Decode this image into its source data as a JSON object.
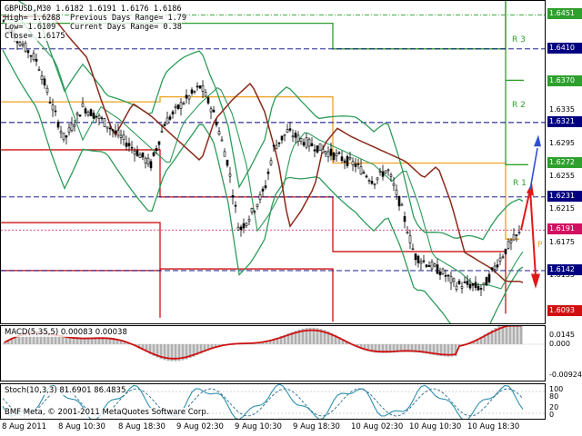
{
  "chart": {
    "symbol_line": "GBPUSD,M30  1.6182 1.6191 1.6176 1.6186",
    "high_line": "High= 1.6288",
    "low_line": "Low= 1.6109",
    "close_line": "Close= 1.6175",
    "prev_range_line": "Previous Days Range= 1.79",
    "curr_range_line": "Current Days Range= 0.38",
    "r3_label": "R 3",
    "r2_label": "R 2",
    "r1_label": "R 1",
    "p_label": "P",
    "copyright": "BMF Meta, © 2001-2011 MetaQuotes Software Corp.",
    "colors": {
      "up_candle": "#000000",
      "down_candle": "#000000",
      "bollinger": "#2e9b5a",
      "ma_brown": "#8b2a1a",
      "pivot_green": "#2ea02e",
      "pivot_orange": "#f0a020",
      "pivot_red": "#d01010",
      "level_navy": "#000080",
      "arrow_red": "#e01818",
      "arrow_blue": "#3050d0",
      "macd_line": "#d01010",
      "macd_hist": "#b0b0b0",
      "stoch_main": "#3090b0"
    }
  },
  "price_axis": {
    "ticks": [
      "1.6335",
      "1.6295",
      "1.6255",
      "1.6215",
      "1.6175",
      "1.6135"
    ],
    "tags": [
      {
        "value": "1.6451",
        "color": "#2ea02e"
      },
      {
        "value": "1.6410",
        "color": "#000080"
      },
      {
        "value": "1.6370",
        "color": "#2ea02e"
      },
      {
        "value": "1.6321",
        "color": "#000080"
      },
      {
        "value": "1.6272",
        "color": "#2ea02e"
      },
      {
        "value": "1.6231",
        "color": "#000080"
      },
      {
        "value": "1.6191",
        "color": "#d01060"
      },
      {
        "value": "1.6142",
        "color": "#000080"
      },
      {
        "value": "1.6093",
        "color": "#d01010"
      }
    ]
  },
  "macd": {
    "label": "MACD(5,35,5) 0.00083 0.00038",
    "ticks": [
      "0.0145",
      "0.000",
      "-0.00924"
    ]
  },
  "stoch": {
    "label": "Stoch(10,3,3) 81.6901 86.4835",
    "ticks": [
      "100",
      "80",
      "20",
      "0"
    ]
  },
  "time_axis": {
    "labels": [
      "8 Aug 2011",
      "8 Aug 10:30",
      "8 Aug 18:30",
      "9 Aug 02:30",
      "9 Aug 10:30",
      "9 Aug 18:30",
      "10 Aug 02:30",
      "10 Aug 10:30",
      "10 Aug 18:30"
    ]
  }
}
